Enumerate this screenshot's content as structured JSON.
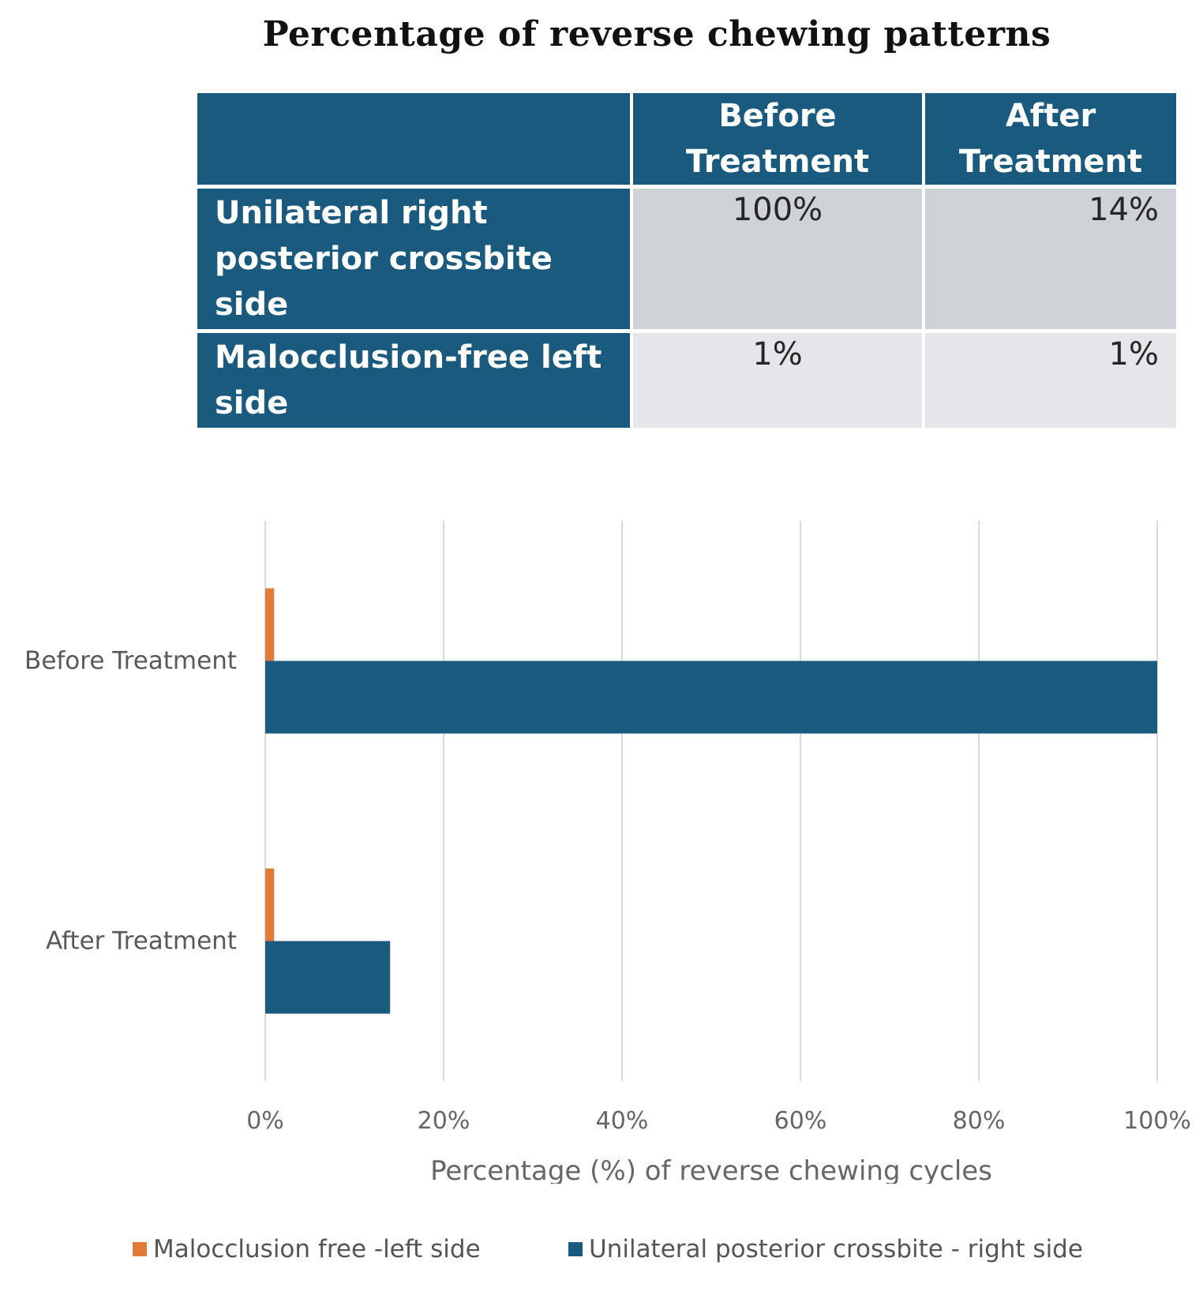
{
  "title": "Percentage of reverse chewing patterns",
  "table": {
    "headers": [
      "",
      "Before Treatment",
      "After Treatment"
    ],
    "rows": [
      {
        "label": "Unilateral right posterior crossbite side",
        "before": "100%",
        "after": "14%"
      },
      {
        "label": "Malocclusion-free left side",
        "before": "1%",
        "after": "1%"
      }
    ]
  },
  "chart_data": {
    "type": "bar",
    "orientation": "horizontal",
    "categories": [
      "Before Treatment",
      "After Treatment"
    ],
    "series": [
      {
        "name": "Malocclusion free -left side",
        "values": [
          1,
          1
        ],
        "color": "#e07b39"
      },
      {
        "name": "Unilateral posterior crossbite - right side",
        "values": [
          100,
          14
        ],
        "color": "#1a5a7e"
      }
    ],
    "xlabel": "Percentage (%) of reverse chewing cycles",
    "ylabel": "",
    "xlim": [
      0,
      100
    ],
    "xticks": [
      "0%",
      "20%",
      "40%",
      "60%",
      "80%",
      "100%"
    ],
    "grid": true,
    "legend_position": "bottom"
  }
}
